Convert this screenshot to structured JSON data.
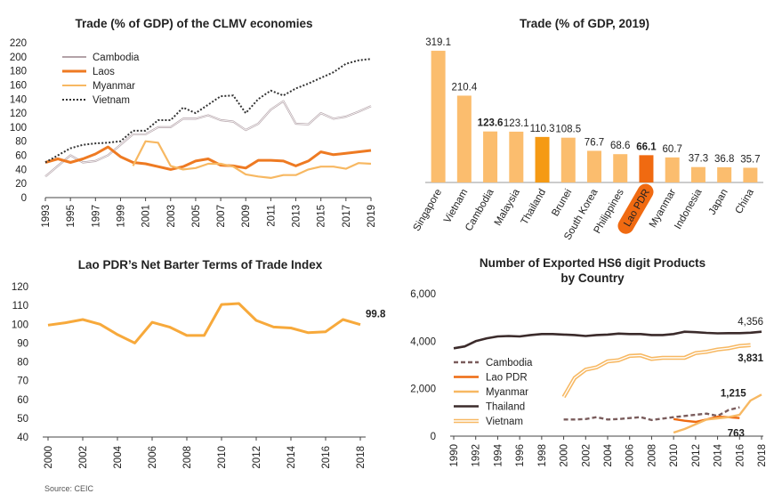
{
  "source": "Source: CEIC",
  "chart_data": [
    {
      "type": "line",
      "title": "Trade (% of GDP) of the CLMV economies",
      "ylim": [
        0,
        220
      ],
      "yticks": [
        "0",
        "20",
        "40",
        "60",
        "80",
        "100",
        "120",
        "140",
        "160",
        "180",
        "200",
        "220"
      ],
      "xticks": [
        "1993",
        "1995",
        "1997",
        "1999",
        "2001",
        "2003",
        "2005",
        "2007",
        "2009",
        "2011",
        "2013",
        "2015",
        "2017",
        "2019"
      ],
      "x": [
        1993,
        1994,
        1995,
        1996,
        1997,
        1998,
        1999,
        2000,
        2001,
        2002,
        2003,
        2004,
        2005,
        2006,
        2007,
        2008,
        2009,
        2010,
        2011,
        2012,
        2013,
        2014,
        2015,
        2016,
        2017,
        2018,
        2019
      ],
      "legend": "top-left",
      "series": [
        {
          "name": "Cambodia",
          "color": "#b3a2a8",
          "dash": "",
          "values": [
            30,
            45,
            60,
            50,
            52,
            60,
            75,
            90,
            90,
            100,
            100,
            112,
            112,
            117,
            110,
            108,
            96,
            105,
            125,
            137,
            105,
            104,
            120,
            112,
            115,
            122,
            130
          ]
        },
        {
          "name": "Laos",
          "color": "#ee7a22",
          "dash": "",
          "values": [
            50,
            55,
            50,
            55,
            62,
            72,
            58,
            50,
            48,
            44,
            40,
            44,
            52,
            55,
            46,
            45,
            42,
            53,
            53,
            52,
            45,
            52,
            65,
            61,
            63,
            65,
            67
          ]
        },
        {
          "name": "Myanmar",
          "color": "#f7b862",
          "dash": "",
          "values": [
            null,
            null,
            null,
            null,
            null,
            null,
            null,
            45,
            80,
            78,
            45,
            40,
            42,
            48,
            48,
            44,
            33,
            30,
            28,
            32,
            32,
            40,
            44,
            44,
            41,
            49,
            48
          ]
        },
        {
          "name": "Vietnam",
          "color": "#333333",
          "dash": "2,2",
          "values": [
            50,
            60,
            70,
            75,
            77,
            78,
            80,
            95,
            95,
            110,
            110,
            128,
            120,
            132,
            144,
            145,
            120,
            140,
            152,
            145,
            155,
            162,
            170,
            178,
            190,
            195,
            197
          ]
        }
      ]
    },
    {
      "type": "bar",
      "title": "Trade (% of GDP, 2019)",
      "categories": [
        "Singapore",
        "Vietnam",
        "Cambodia",
        "Malaysia",
        "Thailand",
        "Brunei",
        "South Korea",
        "Philippines",
        "Lao PDR",
        "Myanmar",
        "Indonesia",
        "Japan",
        "China"
      ],
      "values": [
        319.1,
        210.4,
        123.6,
        123.1,
        110.3,
        108.5,
        76.7,
        68.6,
        66.1,
        60.7,
        37.3,
        36.8,
        35.7
      ],
      "value_labels": [
        "319.1",
        "210.4",
        "123.6",
        "123.1",
        "110.3",
        "108.5",
        "76.7",
        "68.6",
        "66.1",
        "60.7",
        "37.3",
        "36.8",
        "35.7"
      ],
      "highlight_labels": [
        "Cambodia",
        "Lao PDR"
      ],
      "highlight_category": "Lao PDR",
      "bar_colors": {
        "default": "#fbbd6e",
        "Thailand": "#f59a14",
        "Lao PDR": "#f06a11"
      },
      "highlight_text_color": "#e8731a",
      "ylim": [
        0,
        330
      ]
    },
    {
      "type": "line",
      "title": "Lao PDR’s Net Barter Terms of Trade Index",
      "ylim": [
        40,
        120
      ],
      "yticks": [
        "40",
        "50",
        "60",
        "70",
        "80",
        "90",
        "100",
        "110",
        "120"
      ],
      "x": [
        2000,
        2001,
        2002,
        2003,
        2004,
        2005,
        2006,
        2007,
        2008,
        2009,
        2010,
        2011,
        2012,
        2013,
        2014,
        2015,
        2016,
        2017,
        2018
      ],
      "xticks": [
        "2000",
        "2002",
        "2004",
        "2006",
        "2008",
        "2010",
        "2012",
        "2014",
        "2016",
        "2018"
      ],
      "series": [
        {
          "name": "",
          "color": "#f7a93b",
          "values": [
            99.5,
            100.8,
            102.5,
            100,
            94.5,
            90,
            101,
            98.5,
            94,
            94,
            110.5,
            111,
            102,
            98.5,
            98,
            95.5,
            96,
            102.5,
            99.8
          ]
        }
      ],
      "end_label": "99.8",
      "end_label_color": "#f0a030"
    },
    {
      "type": "line",
      "title": [
        "Number of Exported HS6 digit Products",
        "by Country"
      ],
      "ylim": [
        0,
        6000
      ],
      "yticks": [
        "0",
        "2,000",
        "4,000",
        "6,000"
      ],
      "xticks": [
        "1990",
        "1992",
        "1994",
        "1996",
        "1998",
        "2000",
        "2002",
        "2004",
        "2006",
        "2008",
        "2010",
        "2012",
        "2014",
        "2016",
        "2018"
      ],
      "legend": "center-left",
      "series": [
        {
          "name": "Cambodia",
          "color": "#7a5c5c",
          "dash": "5,3",
          "double": false,
          "x": [
            2000,
            2001,
            2002,
            2003,
            2004,
            2005,
            2006,
            2007,
            2008,
            2009,
            2010,
            2011,
            2012,
            2013,
            2014,
            2015,
            2016
          ],
          "values": [
            700,
            700,
            720,
            800,
            700,
            720,
            760,
            800,
            680,
            740,
            800,
            850,
            900,
            950,
            850,
            1100,
            1215
          ]
        },
        {
          "name": "Lao PDR",
          "color": "#ee6a11",
          "dash": "",
          "double": false,
          "x": [
            2010,
            2011,
            2012,
            2013,
            2014,
            2015,
            2016
          ],
          "values": [
            720,
            650,
            600,
            700,
            820,
            800,
            763
          ]
        },
        {
          "name": "Myanmar",
          "color": "#f7b862",
          "dash": "",
          "double": false,
          "x": [
            2010,
            2011,
            2012,
            2013,
            2014,
            2015,
            2016,
            2017,
            2018
          ],
          "values": [
            150,
            300,
            500,
            700,
            750,
            800,
            900,
            1500,
            1750
          ]
        },
        {
          "name": "Thailand",
          "color": "#3b2b2b",
          "dash": "",
          "double": false,
          "x": [
            1990,
            1991,
            1992,
            1993,
            1994,
            1995,
            1996,
            1997,
            1998,
            1999,
            2000,
            2001,
            2002,
            2003,
            2004,
            2005,
            2006,
            2007,
            2008,
            2009,
            2010,
            2011,
            2012,
            2013,
            2014,
            2015,
            2016,
            2017,
            2018
          ],
          "values": [
            3700,
            3780,
            4000,
            4120,
            4200,
            4220,
            4200,
            4260,
            4300,
            4300,
            4280,
            4260,
            4220,
            4260,
            4280,
            4320,
            4300,
            4300,
            4260,
            4260,
            4300,
            4400,
            4380,
            4350,
            4330,
            4340,
            4340,
            4356,
            4400
          ]
        },
        {
          "name": "Vietnam",
          "color": "#f7b862",
          "dash": "",
          "double": true,
          "x": [
            2000,
            2001,
            2002,
            2003,
            2004,
            2005,
            2006,
            2007,
            2008,
            2009,
            2010,
            2011,
            2012,
            2013,
            2014,
            2015,
            2016,
            2017
          ],
          "values": [
            1650,
            2450,
            2800,
            2900,
            3150,
            3200,
            3380,
            3400,
            3250,
            3300,
            3300,
            3300,
            3500,
            3550,
            3650,
            3700,
            3800,
            3831
          ]
        }
      ],
      "annotations": [
        {
          "text": "4,356",
          "x": 2017,
          "y": 4356,
          "color": "#333333"
        },
        {
          "text": "3,831",
          "x": 2017,
          "y": 3831,
          "color": "#f0a030"
        },
        {
          "text": "1,215",
          "x": 2016,
          "y": 1215,
          "color": "#e8731a"
        },
        {
          "text": "763",
          "x": 2016,
          "y": 763,
          "color": "#e8731a"
        }
      ]
    }
  ]
}
